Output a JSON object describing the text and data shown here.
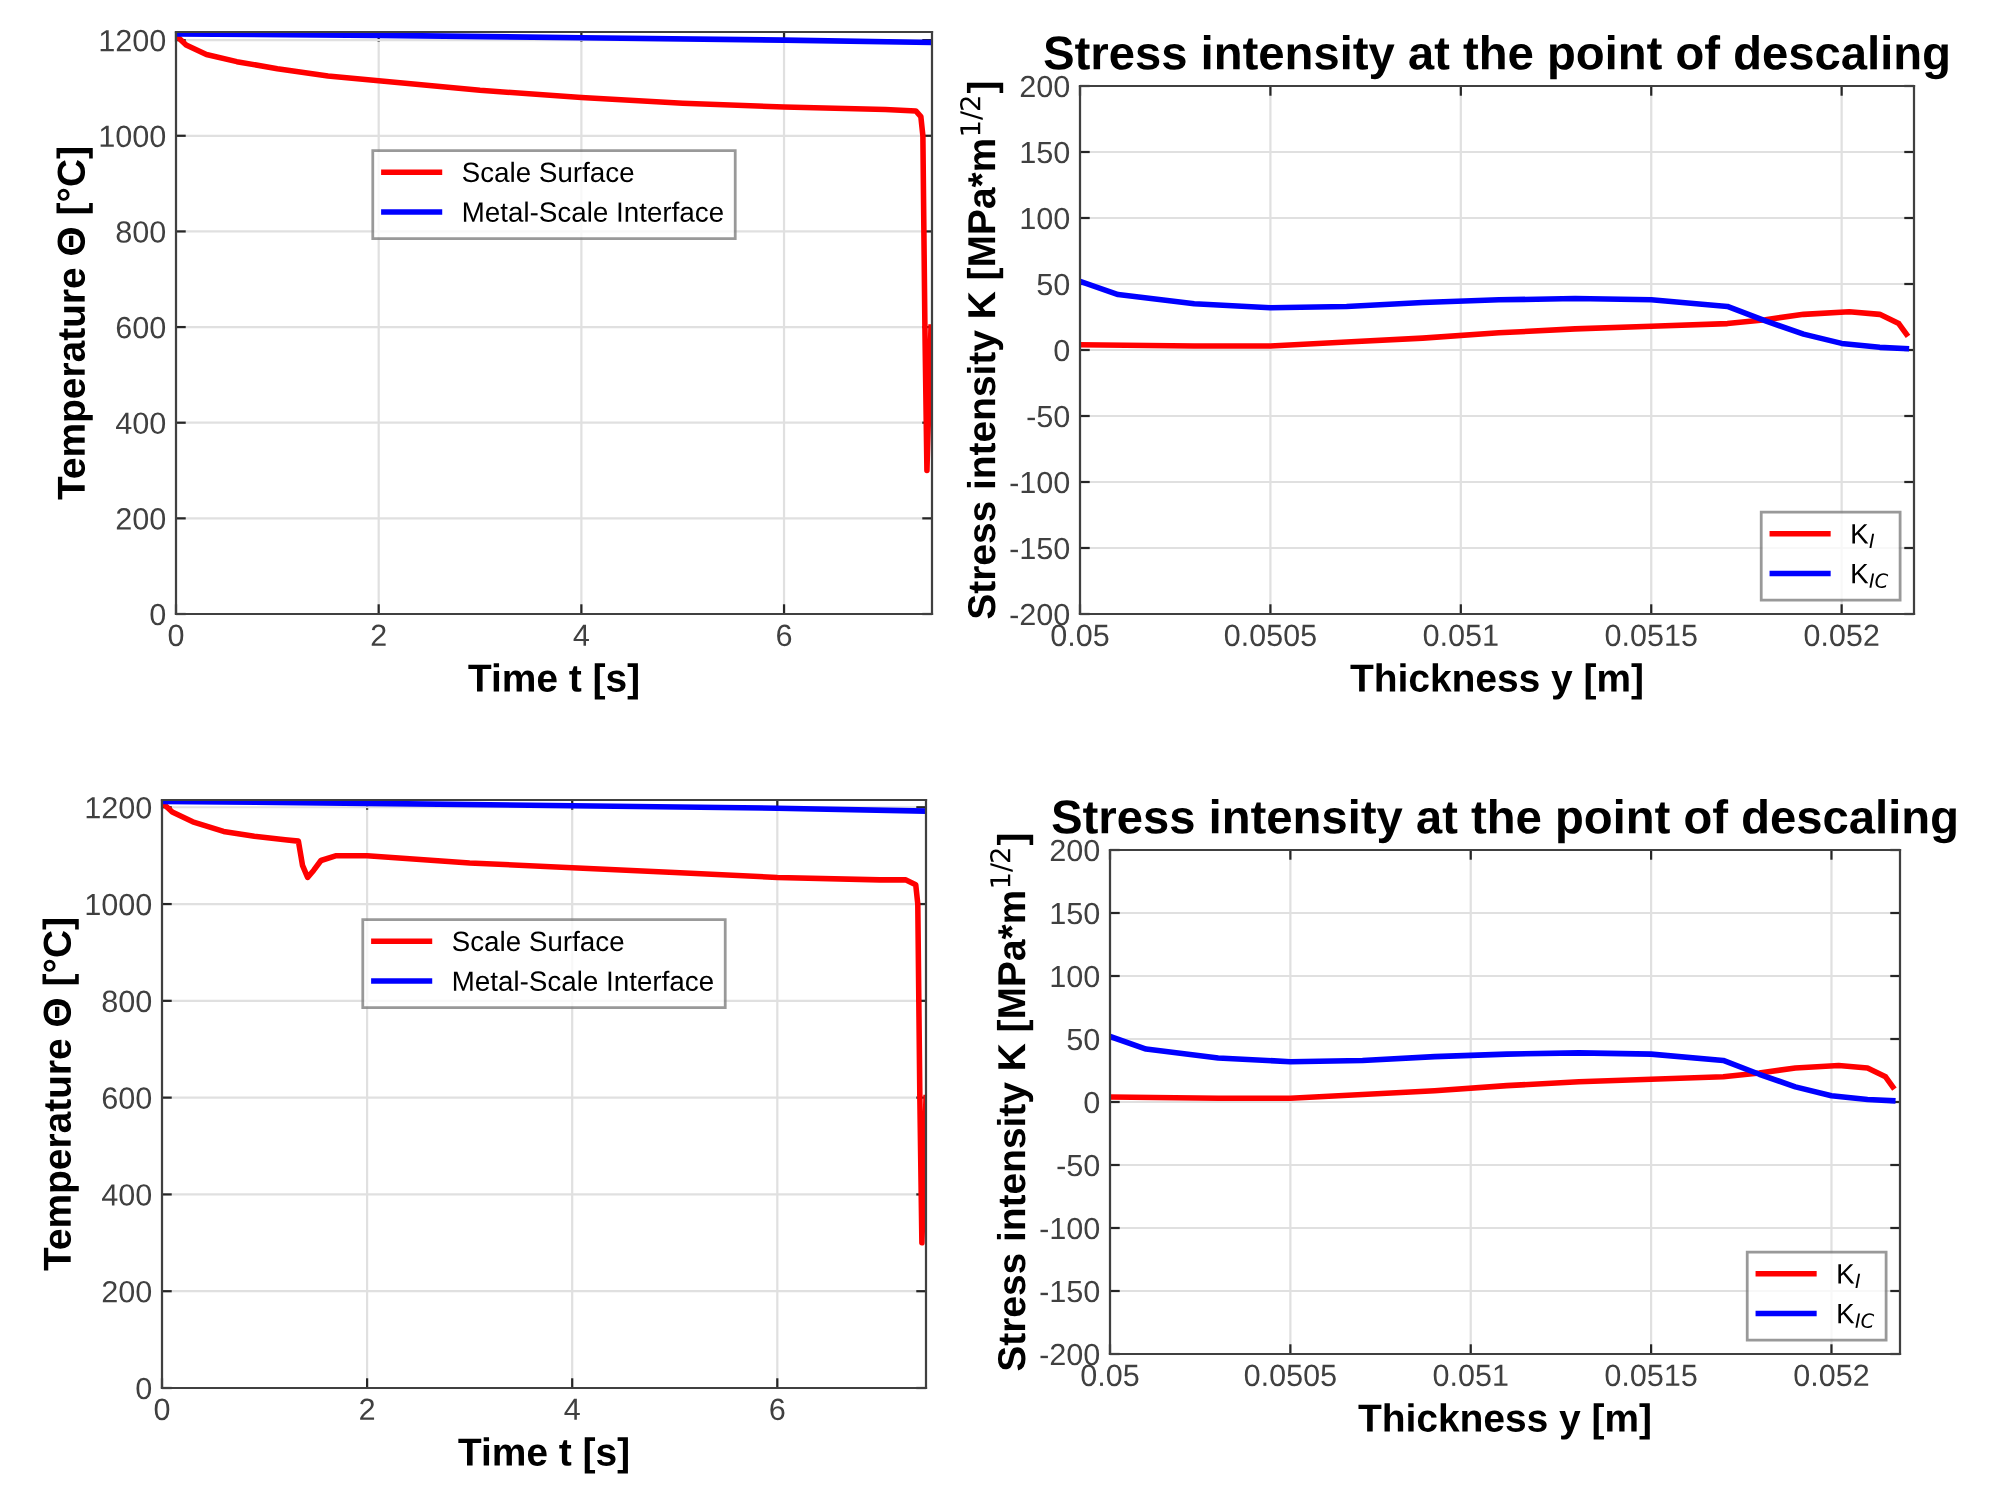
{
  "chart_data": [
    {
      "type": "line",
      "xlabel": "Time t [s]",
      "ylabel": "Temperature Θ [°C]",
      "xlim": [
        0,
        7.46
      ],
      "ylim": [
        0,
        1217
      ],
      "xticks": [
        0,
        2,
        4,
        6
      ],
      "yticks": [
        0,
        200,
        400,
        600,
        800,
        1000,
        1200
      ],
      "grid": true,
      "legend": "top",
      "series": [
        {
          "name": "Scale Surface",
          "color": "#ff0000",
          "x": [
            0,
            0.1,
            0.3,
            0.6,
            1,
            1.5,
            2,
            3,
            4,
            5,
            6,
            7,
            7.3,
            7.35,
            7.37,
            7.39,
            7.41,
            7.43,
            7.45
          ],
          "values": [
            1210,
            1190,
            1170,
            1155,
            1140,
            1125,
            1115,
            1095,
            1080,
            1068,
            1060,
            1055,
            1052,
            1040,
            1000,
            600,
            300,
            450,
            600
          ]
        },
        {
          "name": "Metal-Scale Interface",
          "color": "#0000ff",
          "x": [
            0,
            2,
            4,
            6,
            7.45
          ],
          "values": [
            1213,
            1210,
            1205,
            1200,
            1195
          ]
        }
      ]
    },
    {
      "type": "line",
      "title": "Stress intensity at the point of descaling",
      "xlabel": "Thickness y [m]",
      "ylabel": "Stress intensity K [MPa*m$^{1/2}$]",
      "xlim": [
        0.05,
        0.05219
      ],
      "ylim": [
        -200,
        200
      ],
      "xticks": [
        0.05,
        0.0505,
        0.051,
        0.0515,
        0.052
      ],
      "yticks": [
        -200,
        -150,
        -100,
        -50,
        0,
        50,
        100,
        150,
        200
      ],
      "grid": true,
      "legend": "bottom right",
      "series": [
        {
          "name": "K$_{I}$",
          "color": "#ff0000",
          "x": [
            0.05,
            0.0503,
            0.0505,
            0.0507,
            0.0509,
            0.0511,
            0.0513,
            0.0515,
            0.0517,
            0.0518,
            0.0519,
            0.05202,
            0.0521,
            0.05215,
            0.05217
          ],
          "values": [
            4,
            3,
            3,
            6,
            9,
            13,
            16,
            18,
            20,
            23,
            27,
            29,
            27,
            20,
            12
          ]
        },
        {
          "name": "K$_{IC}$",
          "color": "#0000ff",
          "x": [
            0.05,
            0.0501,
            0.0503,
            0.0505,
            0.0507,
            0.0509,
            0.0511,
            0.0513,
            0.0515,
            0.0517,
            0.0518,
            0.0519,
            0.052,
            0.0521,
            0.05217
          ],
          "values": [
            52,
            42,
            35,
            32,
            33,
            36,
            38,
            39,
            38,
            33,
            22,
            12,
            5,
            2,
            1
          ]
        }
      ]
    },
    {
      "type": "line",
      "xlabel": "Time t [s]",
      "ylabel": "Temperature Θ [°C]",
      "xlim": [
        0,
        7.45
      ],
      "ylim": [
        0,
        1215
      ],
      "xticks": [
        0,
        2,
        4,
        6
      ],
      "yticks": [
        0,
        200,
        400,
        600,
        800,
        1000,
        1200
      ],
      "grid": true,
      "legend": "top",
      "series": [
        {
          "name": "Scale Surface",
          "color": "#ff0000",
          "x": [
            0,
            0.1,
            0.3,
            0.6,
            0.9,
            1.2,
            1.33,
            1.37,
            1.42,
            1.48,
            1.55,
            1.7,
            2,
            3,
            4,
            5,
            6,
            7,
            7.25,
            7.35,
            7.37,
            7.39,
            7.41,
            7.43,
            7.45
          ],
          "values": [
            1210,
            1190,
            1170,
            1150,
            1140,
            1133,
            1130,
            1080,
            1055,
            1070,
            1090,
            1100,
            1100,
            1085,
            1075,
            1065,
            1055,
            1050,
            1050,
            1040,
            1000,
            600,
            300,
            450,
            600
          ]
        },
        {
          "name": "Metal-Scale Interface",
          "color": "#0000ff",
          "x": [
            0,
            2,
            4,
            6,
            7.45
          ],
          "values": [
            1212,
            1208,
            1203,
            1198,
            1192
          ]
        }
      ]
    },
    {
      "type": "line",
      "title": "Stress intensity at the point of descaling",
      "xlabel": "Thickness y [m]",
      "ylabel": "Stress intensity K [MPa*m$^{1/2}$]",
      "xlim": [
        0.05,
        0.05219
      ],
      "ylim": [
        -200,
        200
      ],
      "xticks": [
        0.05,
        0.0505,
        0.051,
        0.0515,
        0.052
      ],
      "yticks": [
        -200,
        -150,
        -100,
        -50,
        0,
        50,
        100,
        150,
        200
      ],
      "grid": true,
      "legend": "bottom right",
      "series": [
        {
          "name": "K$_{I}$",
          "color": "#ff0000",
          "x": [
            0.05,
            0.0503,
            0.0505,
            0.0507,
            0.0509,
            0.0511,
            0.0513,
            0.0515,
            0.0517,
            0.0518,
            0.0519,
            0.05202,
            0.0521,
            0.05215,
            0.05217
          ],
          "values": [
            4,
            3,
            3,
            6,
            9,
            13,
            16,
            18,
            20,
            23,
            27,
            29,
            27,
            20,
            12
          ]
        },
        {
          "name": "K$_{IC}$",
          "color": "#0000ff",
          "x": [
            0.05,
            0.0501,
            0.0503,
            0.0505,
            0.0507,
            0.0509,
            0.0511,
            0.0513,
            0.0515,
            0.0517,
            0.0518,
            0.0519,
            0.052,
            0.0521,
            0.05217
          ],
          "values": [
            52,
            42,
            35,
            32,
            33,
            36,
            38,
            39,
            38,
            33,
            22,
            12,
            5,
            2,
            1
          ]
        }
      ]
    }
  ]
}
